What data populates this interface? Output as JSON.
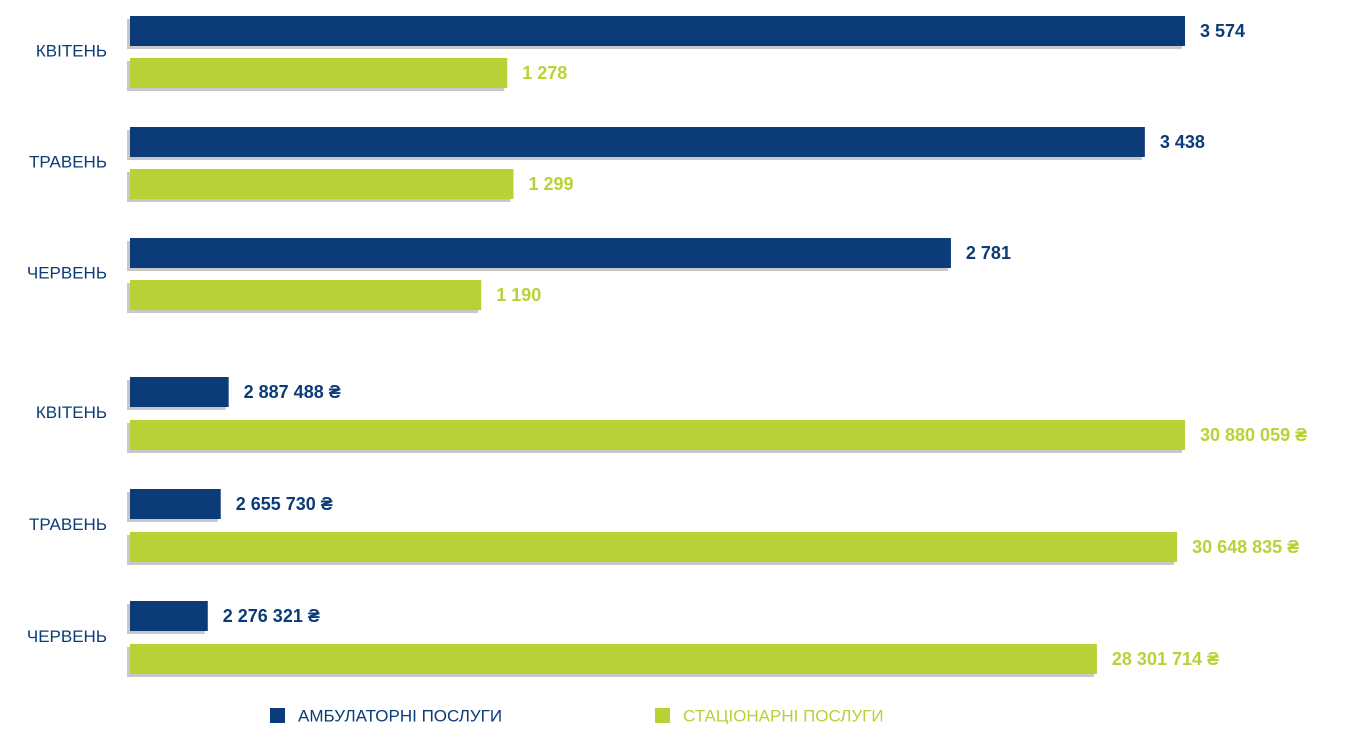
{
  "chart_data": [
    {
      "type": "bar",
      "orientation": "horizontal",
      "categories": [
        "КВІТЕНЬ",
        "ТРАВЕНЬ",
        "ЧЕРВЕНЬ"
      ],
      "series": [
        {
          "name": "АМБУЛАТОРНІ ПОСЛУГИ",
          "color": "#0b3b78",
          "values": [
            3574,
            3438,
            2781
          ],
          "value_labels": [
            "3 574",
            "3 438",
            "2 781"
          ]
        },
        {
          "name": "СТАЦІОНАРНІ ПОСЛУГИ",
          "color": "#b7d236",
          "values": [
            1278,
            1299,
            1190
          ],
          "value_labels": [
            "1 278",
            "1 299",
            "1 190"
          ]
        }
      ]
    },
    {
      "type": "bar",
      "orientation": "horizontal",
      "categories": [
        "КВІТЕНЬ",
        "ТРАВЕНЬ",
        "ЧЕРВЕНЬ"
      ],
      "series": [
        {
          "color": "#0b3b78",
          "values": [
            2887488,
            2655730,
            2276321
          ],
          "value_labels": [
            "2 887 488 ₴",
            "2 655 730 ₴",
            "2 276 321 ₴"
          ]
        },
        {
          "color": "#b7d236",
          "values": [
            30880059,
            30648835,
            28301714
          ],
          "value_labels": [
            "30 880 059 ₴",
            "30 648 835 ₴",
            "28 301 714 ₴"
          ]
        }
      ]
    }
  ]
}
